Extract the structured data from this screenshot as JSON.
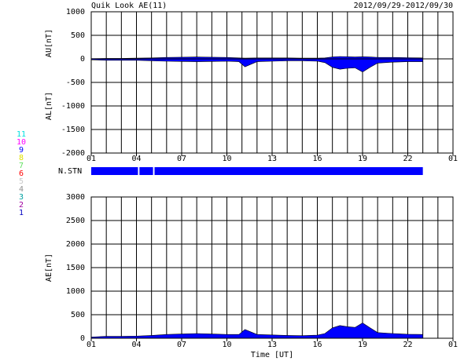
{
  "chart_data": [
    {
      "type": "area",
      "title": "Quik Look AE(11)",
      "subtitle": "2012/09/29-2012/09/30",
      "x": [
        0,
        1,
        2,
        3,
        4,
        5,
        6,
        7,
        8,
        9,
        9.8,
        10.2,
        11,
        12,
        13,
        14,
        15,
        15.5,
        16,
        16.5,
        17,
        17.5,
        18,
        18.5,
        19,
        20,
        21,
        22
      ],
      "series": [
        {
          "name": "AU[nT]",
          "color": "#0000ff",
          "values": [
            5,
            10,
            10,
            15,
            20,
            30,
            35,
            40,
            35,
            30,
            20,
            15,
            20,
            20,
            20,
            15,
            15,
            20,
            40,
            50,
            45,
            40,
            45,
            40,
            30,
            30,
            25,
            20
          ]
        },
        {
          "name": "AL[nT]",
          "color": "#0000ff",
          "values": [
            -20,
            -30,
            -30,
            -30,
            -40,
            -50,
            -55,
            -60,
            -55,
            -50,
            -60,
            -170,
            -60,
            -50,
            -40,
            -40,
            -50,
            -80,
            -180,
            -220,
            -200,
            -190,
            -280,
            -180,
            -90,
            -70,
            -60,
            -60
          ]
        }
      ],
      "xlim": [
        0,
        24
      ],
      "xticks": [
        {
          "value": 0,
          "label": "01"
        },
        {
          "value": 3,
          "label": "04"
        },
        {
          "value": 6,
          "label": "07"
        },
        {
          "value": 9,
          "label": "10"
        },
        {
          "value": 12,
          "label": "13"
        },
        {
          "value": 15,
          "label": "16"
        },
        {
          "value": 18,
          "label": "19"
        },
        {
          "value": 21,
          "label": "22"
        },
        {
          "value": 24,
          "label": "01"
        }
      ],
      "ylim": [
        -2000,
        1000
      ],
      "yticks": [
        1000,
        500,
        0,
        -500,
        -1000,
        -1500,
        -2000
      ],
      "grid": true
    },
    {
      "type": "area",
      "xlabel": "Time [UT]",
      "x": [
        0,
        1,
        2,
        3,
        4,
        5,
        6,
        7,
        8,
        9,
        9.8,
        10.2,
        11,
        12,
        13,
        14,
        15,
        15.5,
        16,
        16.5,
        17,
        17.5,
        18,
        18.5,
        19,
        20,
        21,
        22
      ],
      "series": [
        {
          "name": "AE[nT]",
          "color": "#0000ff",
          "values": [
            25,
            40,
            40,
            45,
            60,
            80,
            90,
            100,
            90,
            80,
            80,
            185,
            80,
            70,
            60,
            55,
            65,
            100,
            220,
            270,
            245,
            230,
            325,
            220,
            120,
            100,
            85,
            80
          ]
        }
      ],
      "xlim": [
        0,
        24
      ],
      "xticks": [
        {
          "value": 0,
          "label": "01"
        },
        {
          "value": 3,
          "label": "04"
        },
        {
          "value": 6,
          "label": "07"
        },
        {
          "value": 9,
          "label": "10"
        },
        {
          "value": 12,
          "label": "13"
        },
        {
          "value": 15,
          "label": "16"
        },
        {
          "value": 18,
          "label": "19"
        },
        {
          "value": 21,
          "label": "22"
        },
        {
          "value": 24,
          "label": "01"
        }
      ],
      "ylim": [
        0,
        3000
      ],
      "yticks": [
        3000,
        2500,
        2000,
        1500,
        1000,
        500,
        0
      ],
      "grid": true
    }
  ],
  "station_panel": {
    "label": "N.STN",
    "color": "#0000ff",
    "segments": [
      [
        0,
        3.1
      ],
      [
        3.2,
        4.1
      ],
      [
        4.2,
        22
      ]
    ],
    "stations": [
      {
        "label": "11",
        "color": "#00e0e0"
      },
      {
        "label": "10",
        "color": "#ff00ff"
      },
      {
        "label": "9",
        "color": "#0000ff"
      },
      {
        "label": "8",
        "color": "#e0e000"
      },
      {
        "label": "7",
        "color": "#60e060"
      },
      {
        "label": "6",
        "color": "#ff0000"
      },
      {
        "label": "5",
        "color": "#c8c8c8"
      },
      {
        "label": "4",
        "color": "#909090"
      },
      {
        "label": "3",
        "color": "#00a0a0"
      },
      {
        "label": "2",
        "color": "#a000a0"
      },
      {
        "label": "1",
        "color": "#0000c0"
      }
    ]
  }
}
